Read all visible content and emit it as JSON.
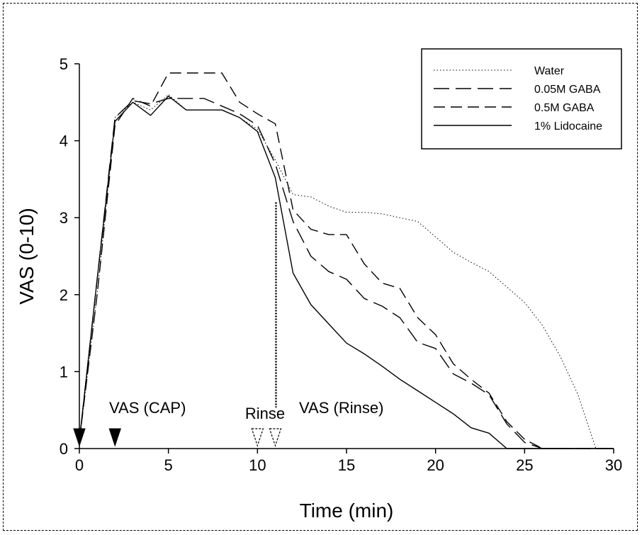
{
  "chart_data": {
    "type": "line",
    "xlabel": "Time (min)",
    "ylabel": "VAS (0-10)",
    "xlim": [
      0,
      30
    ],
    "ylim": [
      0,
      5
    ],
    "xticks": [
      0,
      5,
      10,
      15,
      20,
      25,
      30
    ],
    "yticks": [
      0,
      1,
      2,
      3,
      4,
      5
    ],
    "grid": false,
    "legend_position": "top-right",
    "series": [
      {
        "name": "Water",
        "style": "dotted",
        "x": [
          0,
          1,
          2,
          3,
          4,
          5,
          6,
          7,
          8,
          9,
          10,
          11,
          12,
          13,
          14,
          15,
          16,
          17,
          18,
          19,
          20,
          21,
          22,
          23,
          24,
          25,
          26,
          27,
          28,
          29,
          30
        ],
        "y": [
          0.1,
          2.0,
          4.3,
          4.5,
          4.4,
          4.6,
          4.4,
          4.4,
          4.4,
          4.3,
          4.15,
          3.75,
          3.3,
          3.27,
          3.15,
          3.07,
          3.07,
          3.05,
          3.0,
          2.95,
          2.75,
          2.55,
          2.42,
          2.3,
          2.1,
          1.9,
          1.6,
          1.2,
          0.7,
          0.0,
          0.0
        ]
      },
      {
        "name": "0.05M GABA",
        "style": "long-dash",
        "x": [
          0,
          1,
          2,
          3,
          4,
          5,
          6,
          7,
          8,
          9,
          10,
          11,
          12,
          13,
          14,
          15,
          16,
          17,
          18,
          19,
          20,
          21,
          22,
          23,
          24,
          25,
          26,
          27,
          28,
          29,
          30
        ],
        "y": [
          0.1,
          2.2,
          4.3,
          4.52,
          4.48,
          4.55,
          4.55,
          4.55,
          4.45,
          4.35,
          4.2,
          3.7,
          2.95,
          2.5,
          2.3,
          2.2,
          1.95,
          1.85,
          1.7,
          1.38,
          1.3,
          0.97,
          0.85,
          0.7,
          0.32,
          0.08,
          0.0,
          0.0,
          0.0,
          0.0,
          0.0
        ]
      },
      {
        "name": "0.5M GABA",
        "style": "dash",
        "x": [
          0,
          1,
          2,
          3,
          4,
          5,
          6,
          7,
          8,
          9,
          10,
          11,
          12,
          13,
          14,
          15,
          16,
          17,
          18,
          19,
          20,
          21,
          22,
          23,
          24,
          25,
          26,
          27,
          28,
          29,
          30
        ],
        "y": [
          0.1,
          2.0,
          4.2,
          4.55,
          4.45,
          4.88,
          4.88,
          4.88,
          4.88,
          4.5,
          4.35,
          4.22,
          3.1,
          2.85,
          2.78,
          2.78,
          2.4,
          2.15,
          2.08,
          1.7,
          1.48,
          1.1,
          0.9,
          0.72,
          0.35,
          0.12,
          0.0,
          0.0,
          0.0,
          0.0,
          0.0
        ]
      },
      {
        "name": "1% Lidocaine",
        "style": "solid",
        "x": [
          0,
          1,
          2,
          3,
          4,
          5,
          6,
          7,
          8,
          9,
          10,
          11,
          12,
          13,
          14,
          15,
          16,
          17,
          18,
          19,
          20,
          21,
          22,
          23,
          24,
          25,
          26,
          27,
          28,
          29,
          30
        ],
        "y": [
          0.1,
          2.2,
          4.25,
          4.5,
          4.33,
          4.58,
          4.4,
          4.4,
          4.4,
          4.3,
          4.12,
          3.52,
          2.28,
          1.87,
          1.62,
          1.37,
          1.23,
          1.07,
          0.9,
          0.75,
          0.6,
          0.45,
          0.27,
          0.2,
          0.0,
          0.0,
          0.0,
          0.0,
          0.0,
          0.0,
          0.0
        ]
      }
    ],
    "markers": {
      "cap": {
        "label": "VAS (CAP)",
        "x": [
          0,
          2
        ],
        "style": "filled-triangle"
      },
      "rinse": {
        "label": "Rinse",
        "x": [
          10,
          11
        ],
        "style": "open-triangle"
      },
      "vas_rinse_label": "VAS (Rinse)",
      "divider": {
        "x": 11,
        "y_top": 3.2,
        "style": "dotted"
      }
    }
  }
}
